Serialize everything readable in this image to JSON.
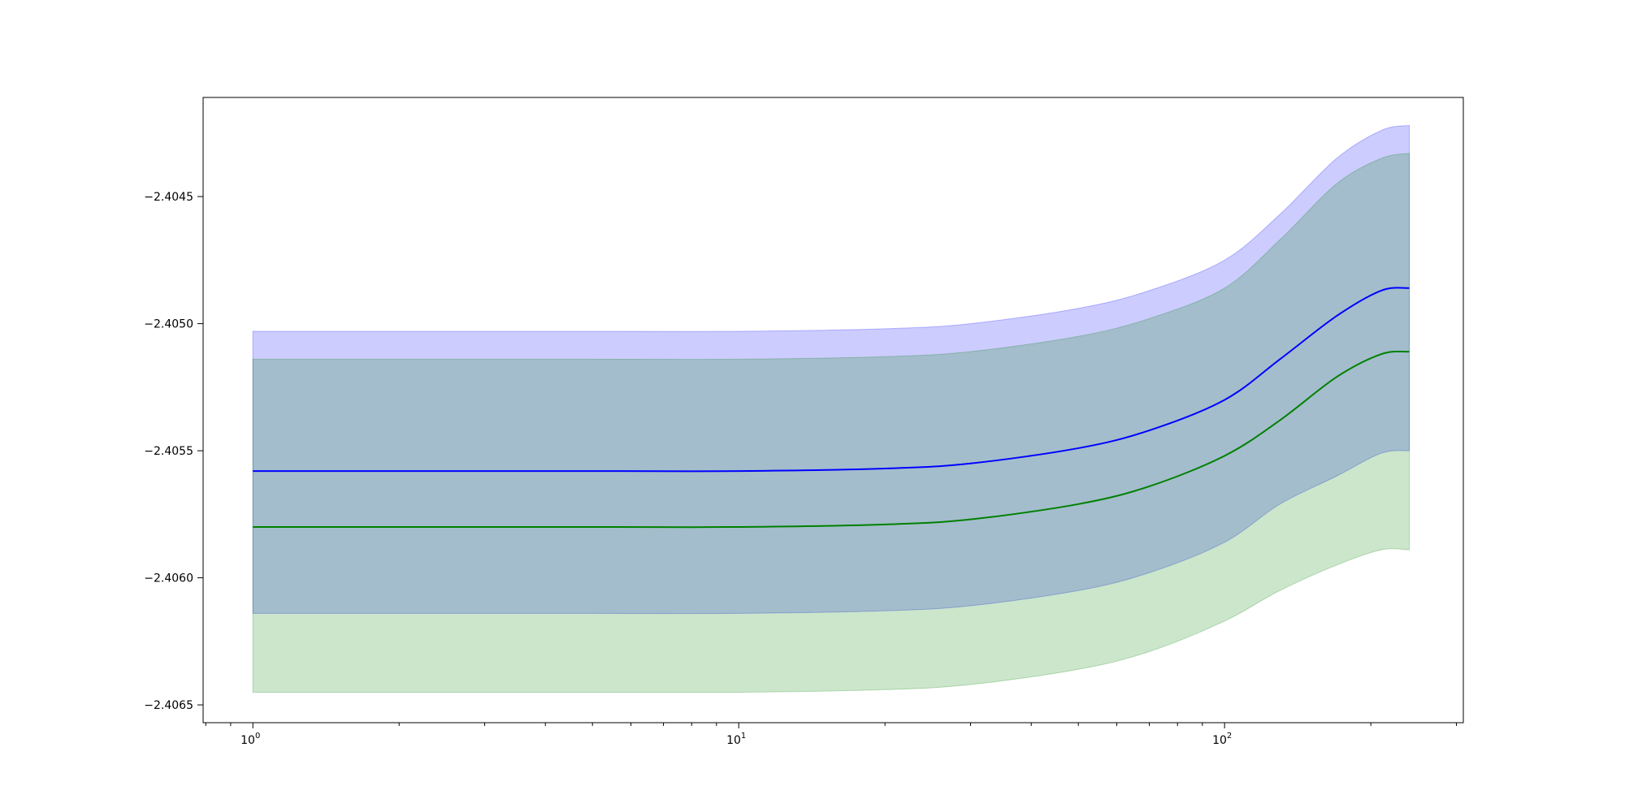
{
  "chart_data": {
    "type": "line",
    "title": "",
    "xlabel": "",
    "ylabel": "",
    "xscale": "log",
    "xlim": [
      0.79,
      310
    ],
    "ylim": [
      -2.40657,
      -2.40411
    ],
    "grid": false,
    "x_ticks": [
      {
        "value": 1,
        "label": "10",
        "exp": "0"
      },
      {
        "value": 10,
        "label": "10",
        "exp": "1"
      },
      {
        "value": 100,
        "label": "10",
        "exp": "2"
      }
    ],
    "y_ticks": [
      {
        "value": -2.4045,
        "label": "−2.4045"
      },
      {
        "value": -2.405,
        "label": "−2.4050"
      },
      {
        "value": -2.4055,
        "label": "−2.4055"
      },
      {
        "value": -2.406,
        "label": "−2.4060"
      },
      {
        "value": -2.4065,
        "label": "−2.4065"
      }
    ],
    "x": [
      1,
      2,
      5,
      10,
      20,
      30,
      50,
      70,
      100,
      130,
      170,
      210,
      240
    ],
    "series": [
      {
        "color": "#0000ff",
        "band_color": "#0000ff",
        "band_opacity": 0.2,
        "values": [
          -2.40558,
          -2.40558,
          -2.40558,
          -2.40558,
          -2.40557,
          -2.40555,
          -2.40549,
          -2.40542,
          -2.4053,
          -2.40514,
          -2.40497,
          -2.40487,
          -2.40486
        ],
        "upper": [
          -2.40503,
          -2.40503,
          -2.40503,
          -2.40503,
          -2.40502,
          -2.405,
          -2.40494,
          -2.40487,
          -2.40475,
          -2.40457,
          -2.40435,
          -2.40424,
          -2.40422
        ],
        "lower": [
          -2.40614,
          -2.40614,
          -2.40614,
          -2.40614,
          -2.40613,
          -2.40611,
          -2.40605,
          -2.40598,
          -2.40586,
          -2.40571,
          -2.4056,
          -2.40551,
          -2.4055
        ]
      },
      {
        "color": "#008000",
        "band_color": "#008000",
        "band_opacity": 0.2,
        "values": [
          -2.4058,
          -2.4058,
          -2.4058,
          -2.4058,
          -2.40579,
          -2.40577,
          -2.40571,
          -2.40564,
          -2.40552,
          -2.40538,
          -2.40521,
          -2.40512,
          -2.40511
        ],
        "upper": [
          -2.40514,
          -2.40514,
          -2.40514,
          -2.40514,
          -2.40513,
          -2.40511,
          -2.40505,
          -2.40498,
          -2.40486,
          -2.40467,
          -2.40445,
          -2.40435,
          -2.40433
        ],
        "lower": [
          -2.40645,
          -2.40645,
          -2.40645,
          -2.40645,
          -2.40644,
          -2.40642,
          -2.40636,
          -2.40629,
          -2.40617,
          -2.40605,
          -2.40595,
          -2.40589,
          -2.40589
        ]
      }
    ]
  }
}
